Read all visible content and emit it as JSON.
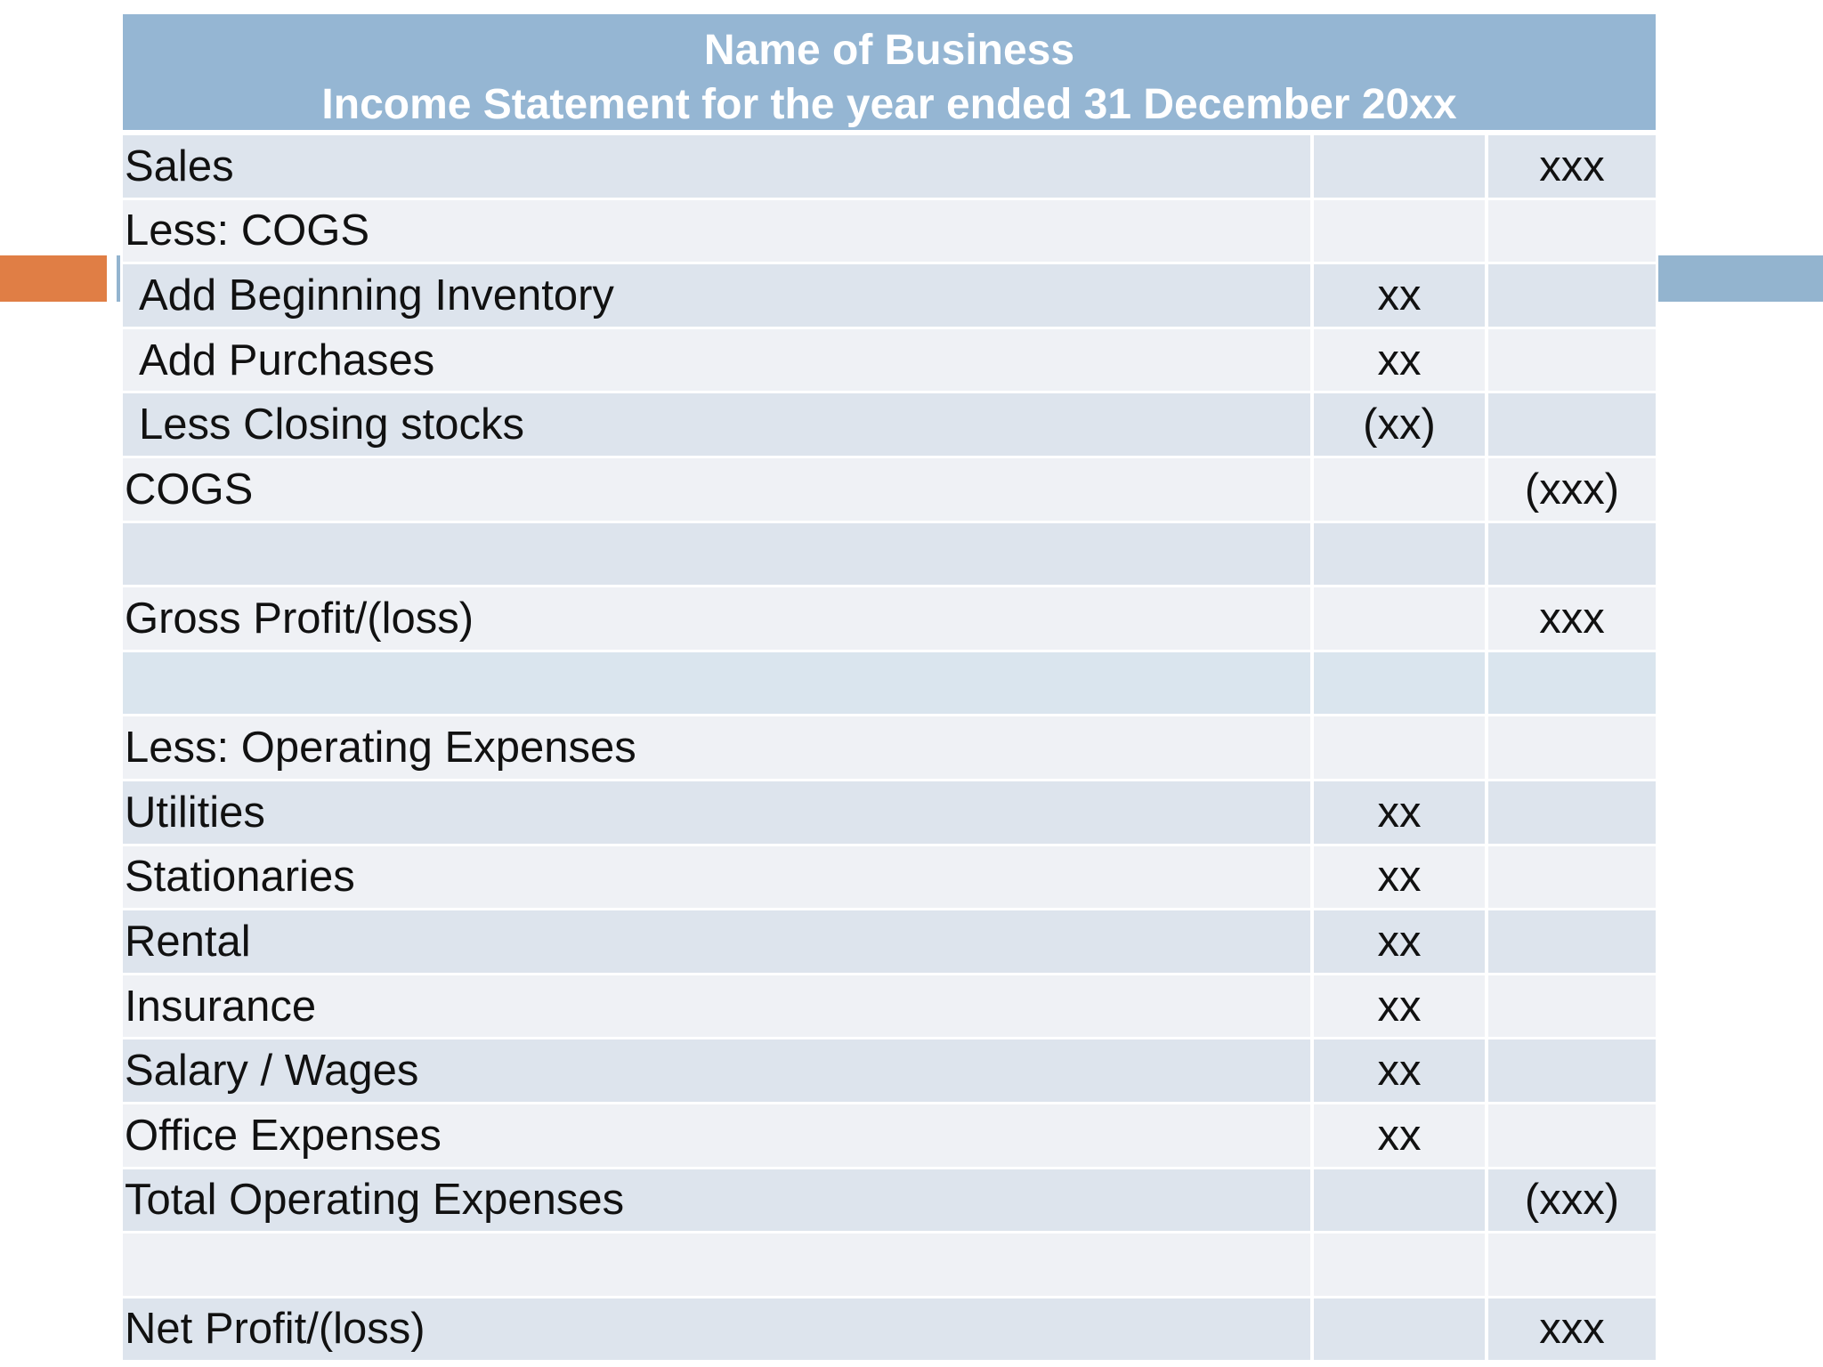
{
  "header": {
    "line1": "Name of Business",
    "line2": "Income Statement for the year ended 31 December 20xx"
  },
  "colors": {
    "header_bg": "#95b6d3",
    "row_dark": "#dde4ed",
    "row_light": "#eff1f5",
    "accent_orange": "#e07e45",
    "accent_blue": "#93b4cf"
  },
  "rows": [
    {
      "label": "Sales",
      "mid": "",
      "right": "xxx"
    },
    {
      "label": "Less: COGS",
      "mid": "",
      "right": ""
    },
    {
      "label": "Add Beginning Inventory",
      "mid": "xx",
      "right": ""
    },
    {
      "label": "Add Purchases",
      "mid": "xx",
      "right": ""
    },
    {
      "label": "Less Closing stocks",
      "mid": "(xx)",
      "right": ""
    },
    {
      "label": "COGS",
      "mid": "",
      "right": "(xxx)"
    },
    {
      "label": "",
      "mid": "",
      "right": ""
    },
    {
      "label": "Gross Profit/(loss)",
      "mid": "",
      "right": "xxx"
    },
    {
      "label": "",
      "mid": "",
      "right": ""
    },
    {
      "label": "Less: Operating Expenses",
      "mid": "",
      "right": ""
    },
    {
      "label": "Utilities",
      "mid": "xx",
      "right": ""
    },
    {
      "label": "Stationaries",
      "mid": "xx",
      "right": ""
    },
    {
      "label": "Rental",
      "mid": "xx",
      "right": ""
    },
    {
      "label": "Insurance",
      "mid": "xx",
      "right": ""
    },
    {
      "label": "Salary / Wages",
      "mid": "xx",
      "right": ""
    },
    {
      "label": "Office Expenses",
      "mid": "xx",
      "right": ""
    },
    {
      "label": "Total Operating Expenses",
      "mid": "",
      "right": "(xxx)"
    },
    {
      "label": "",
      "mid": "",
      "right": ""
    },
    {
      "label": "Net Profit/(loss)",
      "mid": "",
      "right": "xxx"
    }
  ]
}
